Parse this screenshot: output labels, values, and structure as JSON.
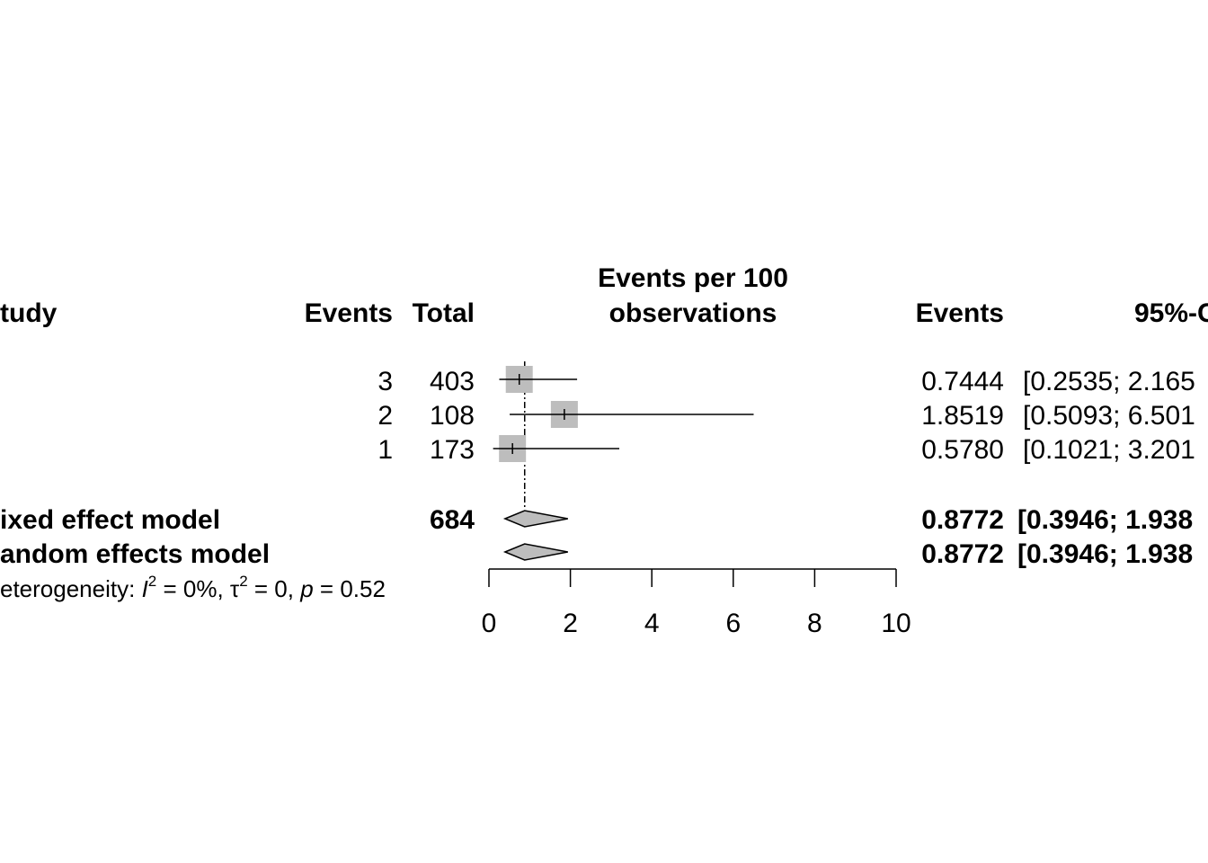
{
  "chart_data": {
    "type": "forest",
    "headers": {
      "study": "tudy",
      "events": "Events",
      "total": "Total",
      "plot_title_line1": "Events per 100",
      "plot_title_line2": "observations",
      "rate": "Events",
      "ci": "95%-C"
    },
    "studies": [
      {
        "events": "3",
        "total": "403",
        "rate": 0.7444,
        "rate_text": "0.7444",
        "lower": 0.2535,
        "upper": 2.165,
        "ci_text": "[0.2535; 2.165",
        "weight": 1.0
      },
      {
        "events": "2",
        "total": "108",
        "rate": 1.8519,
        "rate_text": "1.8519",
        "lower": 0.5093,
        "upper": 6.501,
        "ci_text": "[0.5093; 6.501",
        "weight": 1.0
      },
      {
        "events": "1",
        "total": "173",
        "rate": 0.578,
        "rate_text": "0.5780",
        "lower": 0.1021,
        "upper": 3.201,
        "ci_text": "[0.1021; 3.201",
        "weight": 1.0
      }
    ],
    "pooled": [
      {
        "label": "ixed effect model",
        "total": "684",
        "estimate": 0.8772,
        "lower": 0.3946,
        "upper": 1.938,
        "rate_text": "0.8772",
        "ci_text": "[0.3946; 1.938"
      },
      {
        "label": "andom effects model",
        "total": "",
        "estimate": 0.8772,
        "lower": 0.3946,
        "upper": 1.938,
        "rate_text": "0.8772",
        "ci_text": "[0.3946; 1.938"
      }
    ],
    "heterogeneity": {
      "prefix": "eterogeneity: ",
      "i_symbol": "I",
      "i2_value": " = 0%, ",
      "tau_symbol": "τ",
      "tau2_value": " = 0, ",
      "p_symbol": "p",
      "p_value": " = 0.52",
      "sup": "2"
    },
    "x_axis": {
      "ticks": [
        0,
        2,
        4,
        6,
        8,
        10
      ],
      "tick_labels": [
        "0",
        "2",
        "4",
        "6",
        "8",
        "10"
      ],
      "xlim": [
        0,
        10
      ]
    },
    "reference_line": 0.8772,
    "colors": {
      "square": "#bdbdbd",
      "diamond": "#bdbdbd",
      "line": "#000000"
    }
  }
}
